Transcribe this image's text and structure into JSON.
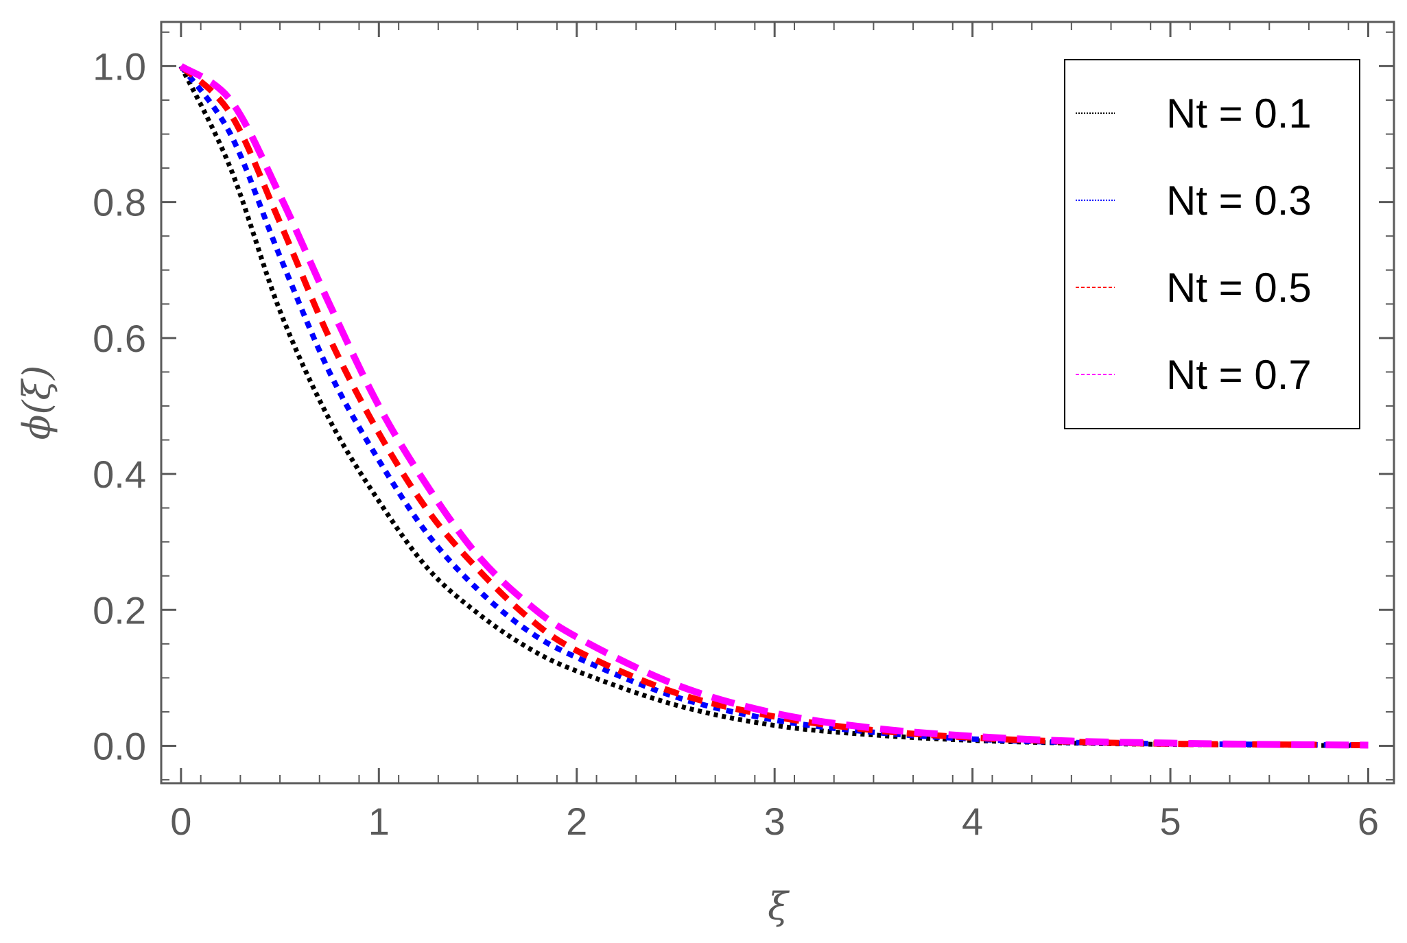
{
  "chart_data": {
    "type": "line",
    "title": "",
    "xlabel": "ξ",
    "ylabel": "ϕ(ξ)",
    "xlim": [
      -0.1,
      6.13
    ],
    "ylim": [
      -0.055,
      1.065
    ],
    "x_ticks": [
      "0",
      "1",
      "2",
      "3",
      "4",
      "5",
      "6"
    ],
    "y_ticks": [
      "0.0",
      "0.2",
      "0.4",
      "0.6",
      "0.8",
      "1.0"
    ],
    "legend_position": "top-right",
    "grid": false,
    "series": [
      {
        "name": "Nt = 0.1",
        "color": "#000000",
        "style": "dotted",
        "x": [
          0,
          0.25,
          0.5,
          0.75,
          1,
          1.25,
          1.5,
          1.75,
          2,
          2.5,
          3,
          3.5,
          4,
          4.5,
          5,
          5.5,
          6
        ],
        "y": [
          1.0,
          0.85,
          0.64,
          0.48,
          0.36,
          0.26,
          0.195,
          0.145,
          0.11,
          0.06,
          0.03,
          0.016,
          0.008,
          0.004,
          0.002,
          0.001,
          0.0
        ]
      },
      {
        "name": "Nt = 0.3",
        "color": "#0000ff",
        "style": "dotted",
        "x": [
          0,
          0.25,
          0.5,
          0.75,
          1,
          1.25,
          1.5,
          1.75,
          2,
          2.5,
          3,
          3.5,
          4,
          4.5,
          5,
          5.5,
          6
        ],
        "y": [
          1.0,
          0.9,
          0.72,
          0.55,
          0.42,
          0.31,
          0.23,
          0.17,
          0.13,
          0.072,
          0.038,
          0.02,
          0.01,
          0.005,
          0.003,
          0.002,
          0.001
        ]
      },
      {
        "name": "Nt = 0.5",
        "color": "#ff0000",
        "style": "dashed",
        "x": [
          0,
          0.25,
          0.5,
          0.75,
          1,
          1.25,
          1.5,
          1.75,
          2,
          2.5,
          3,
          3.5,
          4,
          4.5,
          5,
          5.5,
          6
        ],
        "y": [
          1.0,
          0.93,
          0.77,
          0.6,
          0.46,
          0.345,
          0.26,
          0.19,
          0.14,
          0.078,
          0.043,
          0.023,
          0.012,
          0.006,
          0.003,
          0.002,
          0.001
        ]
      },
      {
        "name": "Nt = 0.7",
        "color": "#ff00ff",
        "style": "dashed",
        "x": [
          0,
          0.25,
          0.5,
          0.75,
          1,
          1.25,
          1.5,
          1.75,
          2,
          2.5,
          3,
          3.5,
          4,
          4.5,
          5,
          5.5,
          6
        ],
        "y": [
          1.0,
          0.95,
          0.81,
          0.65,
          0.5,
          0.38,
          0.28,
          0.21,
          0.16,
          0.09,
          0.048,
          0.026,
          0.014,
          0.007,
          0.004,
          0.002,
          0.001
        ]
      }
    ]
  }
}
